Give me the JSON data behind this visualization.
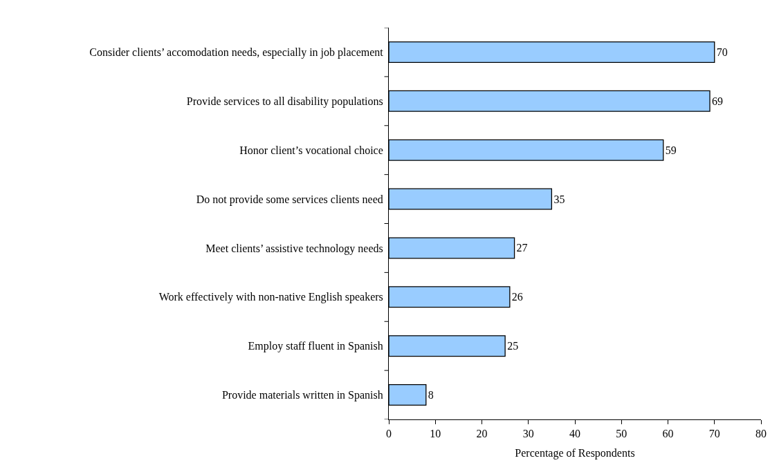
{
  "chart_data": {
    "type": "bar",
    "orientation": "horizontal",
    "xlabel": "Percentage of Respondents",
    "categories": [
      "Consider clients’ accomodation needs, especially in job placement",
      "Provide services to all disability populations",
      "Honor client’s vocational choice",
      "Do not provide some services clients need",
      "Meet clients’ assistive technology needs",
      "Work effectively with non-native English speakers",
      "Employ staff fluent in Spanish",
      "Provide materials written in Spanish"
    ],
    "values": [
      70,
      69,
      59,
      35,
      27,
      26,
      25,
      8
    ],
    "color": "#99ccff",
    "xlim": [
      0,
      80
    ],
    "xticks": [
      0,
      10,
      20,
      30,
      40,
      50,
      60,
      70,
      80
    ],
    "grid": false,
    "legend": false,
    "data_labels": true
  }
}
